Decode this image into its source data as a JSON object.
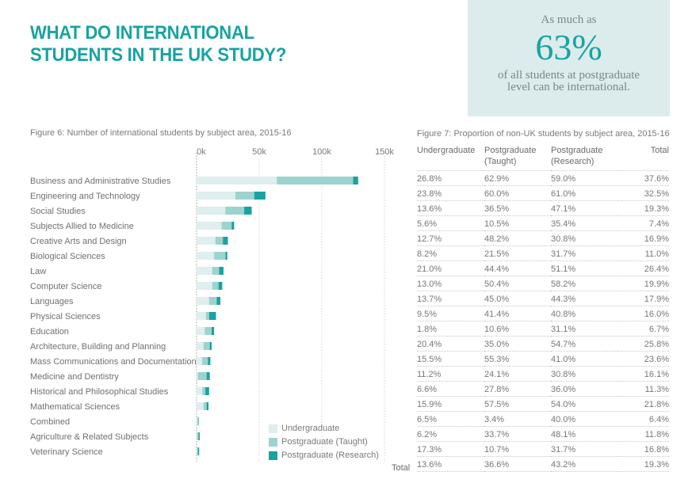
{
  "header": {
    "title_line1": "WHAT DO INTERNATIONAL",
    "title_line2": "STUDENTS IN THE UK STUDY?"
  },
  "callout": {
    "pre": "As much as",
    "value": "63%",
    "post": "of all students at postgraduate level can be international."
  },
  "colors": {
    "accent": "#17a3a1",
    "undergraduate": "#dfeeee",
    "postgraduate_taught": "#9dd3ce",
    "postgraduate_research": "#17a3a1",
    "callout_bg": "#dcecec"
  },
  "chart_data": [
    {
      "type": "bar",
      "orientation": "horizontal",
      "stacked": true,
      "title": "Figure 6: Number of international students by subject area, 2015-16",
      "xlabel": "",
      "ylabel": "",
      "xlim": [
        0,
        150000
      ],
      "xticks": [
        0,
        50000,
        100000,
        150000
      ],
      "xtick_labels": [
        "0k",
        "50k",
        "100k",
        "150k"
      ],
      "grid": true,
      "legend_position": "bottom-right",
      "categories": [
        "Business and Administrative Studies",
        "Engineering and Technology",
        "Social Studies",
        "Subjects Allied to Medicine",
        "Creative Arts and Design",
        "Biological Sciences",
        "Law",
        "Computer Science",
        "Languages",
        "Physical Sciences",
        "Education",
        "Architecture, Building and Planning",
        "Mass Communications and Documentation",
        "Medicine and Dentistry",
        "Historical and Philosophical Studies",
        "Mathematical Sciences",
        "Combined",
        "Agriculture & Related Subjects",
        "Veterinary Science"
      ],
      "series": [
        {
          "name": "Undergraduate",
          "values": [
            64000,
            31000,
            23000,
            20000,
            15000,
            14000,
            12500,
            12500,
            10000,
            7500,
            6500,
            5500,
            4500,
            1000,
            4500,
            5500,
            1000,
            500,
            500
          ]
        },
        {
          "name": "Postgraduate (Taught)",
          "values": [
            61000,
            15000,
            15000,
            8000,
            6000,
            9000,
            5500,
            5000,
            6000,
            2500,
            5500,
            5000,
            4500,
            7000,
            2500,
            2500,
            0,
            1000,
            500
          ]
        },
        {
          "name": "Postgraduate (Research)",
          "values": [
            4000,
            9000,
            6000,
            2000,
            4000,
            1500,
            3500,
            3000,
            3000,
            5500,
            2000,
            1500,
            2000,
            2500,
            3000,
            1500,
            600,
            1000,
            1000
          ]
        }
      ]
    },
    {
      "type": "table",
      "title": "Figure 7: Proportion of non-UK students by subject area, 2015-16",
      "columns": [
        {
          "line1": "Undergraduate",
          "line2": ""
        },
        {
          "line1": "Postgraduate",
          "line2": "(Taught)"
        },
        {
          "line1": "Postgraduate",
          "line2": "(Research)"
        },
        {
          "line1": "Total",
          "line2": ""
        }
      ],
      "rows": [
        [
          "26.8%",
          "62.9%",
          "59.0%",
          "37.6%"
        ],
        [
          "23.8%",
          "60.0%",
          "61.0%",
          "32.5%"
        ],
        [
          "13.6%",
          "36.5%",
          "47.1%",
          "19.3%"
        ],
        [
          "5.6%",
          "10.5%",
          "35.4%",
          "7.4%"
        ],
        [
          "12.7%",
          "48.2%",
          "30.8%",
          "16.9%"
        ],
        [
          "8.2%",
          "21.5%",
          "31.7%",
          "11.0%"
        ],
        [
          "21.0%",
          "44.4%",
          "51.1%",
          "26.4%"
        ],
        [
          "13.0%",
          "50.4%",
          "58.2%",
          "19.9%"
        ],
        [
          "13.7%",
          "45.0%",
          "44.3%",
          "17.9%"
        ],
        [
          "9.5%",
          "41.4%",
          "40.8%",
          "16.0%"
        ],
        [
          "1.8%",
          "10.6%",
          "31.1%",
          "6.7%"
        ],
        [
          "20.4%",
          "35.0%",
          "54.7%",
          "25.8%"
        ],
        [
          "15.5%",
          "55.3%",
          "41.0%",
          "23.6%"
        ],
        [
          "11.2%",
          "24.1%",
          "30.8%",
          "16.1%"
        ],
        [
          "6.6%",
          "27.8%",
          "36.0%",
          "11.3%"
        ],
        [
          "15.9%",
          "57.5%",
          "54.0%",
          "21.8%"
        ],
        [
          "6.5%",
          "3.4%",
          "40.0%",
          "6.4%"
        ],
        [
          "6.2%",
          "33.7%",
          "48.1%",
          "11.8%"
        ],
        [
          "17.3%",
          "10.7%",
          "31.7%",
          "16.8%"
        ]
      ],
      "total_label": "Total",
      "total_row": [
        "13.6%",
        "36.6%",
        "43.2%",
        "19.3%"
      ]
    }
  ]
}
